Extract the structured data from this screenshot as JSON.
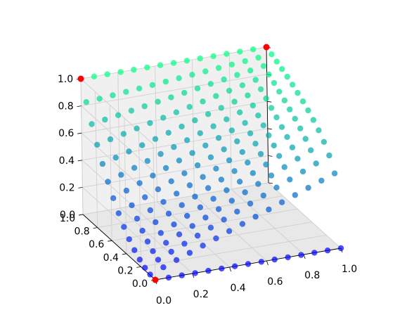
{
  "chart_data": {
    "type": "scatter3d",
    "title": "",
    "xlabel": "",
    "ylabel": "",
    "zlabel": "",
    "xlim": [
      0,
      1
    ],
    "ylim": [
      0,
      1
    ],
    "zlim": [
      0,
      1
    ],
    "x_ticks": [
      "0.0",
      "0.2",
      "0.4",
      "0.6",
      "0.8",
      "1.0"
    ],
    "y_ticks": [
      "0.0",
      "0.2",
      "0.4",
      "0.6",
      "0.8",
      "1.0"
    ],
    "z_ticks": [
      "0.0",
      "0.2",
      "0.4",
      "0.6",
      "0.8",
      "1.0"
    ],
    "grid": true,
    "series": [
      {
        "role": "surface-samples",
        "description_of_values": "grid of points sampled on the surface z = (1 - x)*y^2 + x*y^0.25 over the unit square, colored by z",
        "grid_size": 15,
        "colormap": [
          "#0000ff",
          "#00ff80"
        ],
        "alpha": 0.7
      },
      {
        "role": "corner-points",
        "color": "#ff0000",
        "points": [
          {
            "x": 0,
            "y": 1,
            "z": 1
          },
          {
            "x": 1,
            "y": 1,
            "z": 1
          },
          {
            "x": 0,
            "y": 0,
            "z": 0
          }
        ]
      }
    ]
  }
}
